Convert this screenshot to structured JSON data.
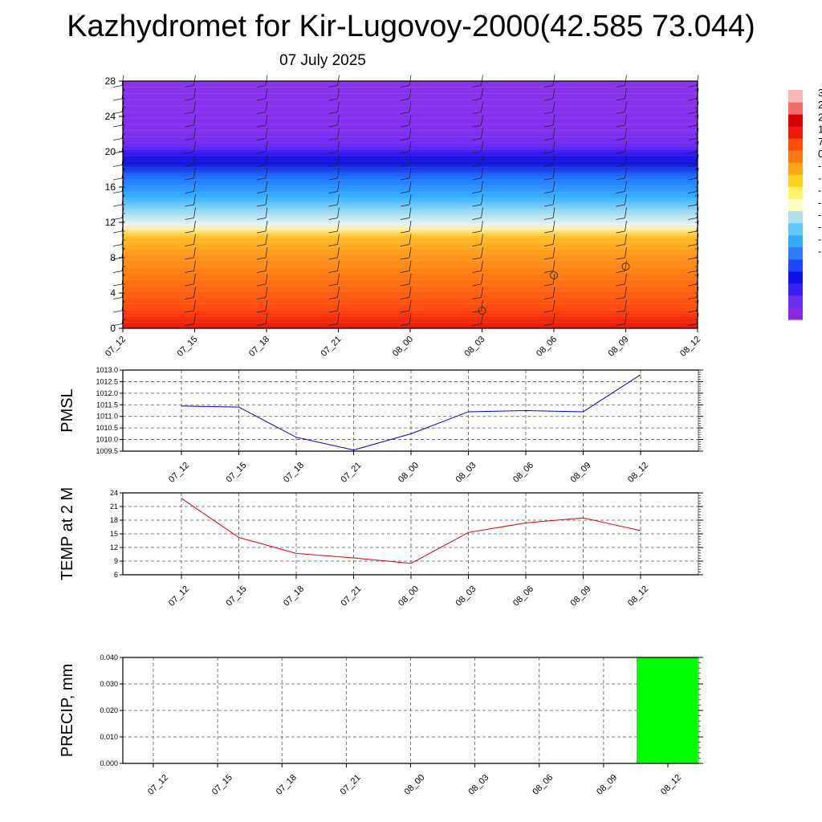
{
  "header": {
    "title": "Kazhydromet for Kir-Lugovoy-2000(42.585 73.044)",
    "subtitle": "07 July 2025"
  },
  "colors": {
    "pmsl_line": "#0000dd",
    "temp_line": "#dd0000",
    "precip_bar": "#00ff00",
    "grid": "#555555",
    "colorbar": [
      "#8a2be2",
      "#6a2ef0",
      "#3a1ff7",
      "#1010e8",
      "#1e48ff",
      "#2d7cff",
      "#34a9ff",
      "#63c8f7",
      "#aee0f0",
      "#fffec0",
      "#fff36e",
      "#ffd024",
      "#ffa51a",
      "#ff7a12",
      "#ff4d0a",
      "#ef1b0a",
      "#d60000",
      "#f56e6e",
      "#f7b8b8"
    ]
  },
  "chart_data": [
    {
      "type": "heatmap",
      "name": "cross-section",
      "x": [
        "07_12",
        "07_15",
        "07_18",
        "07_21",
        "08_00",
        "08_03",
        "08_06",
        "08_09",
        "08_12"
      ],
      "yticks": [
        0,
        4,
        8,
        12,
        16,
        20,
        24,
        28
      ],
      "ylim": [
        0,
        28
      ],
      "colorbar_labels": [
        "3",
        "2",
        "2",
        "1",
        "7",
        "0",
        "-",
        "-",
        "-",
        "-",
        "-",
        "-",
        "-",
        "-"
      ],
      "calm_markers": [
        {
          "x": "08_03",
          "y": 2
        },
        {
          "x": "08_06",
          "y": 6
        },
        {
          "x": "08_09",
          "y": 7
        }
      ]
    },
    {
      "type": "line",
      "ylabel": "PMSL",
      "x": [
        "07_12",
        "07_15",
        "07_18",
        "07_21",
        "08_00",
        "08_03",
        "08_06",
        "08_09",
        "08_12"
      ],
      "values": [
        1011.45,
        1011.4,
        1010.1,
        1009.55,
        1010.25,
        1011.2,
        1011.25,
        1011.2,
        1012.8
      ],
      "ylim": [
        1009.5,
        1013.0
      ],
      "yticks": [
        "1009.5",
        "1010.0",
        "1010.5",
        "1011.0",
        "1011.5",
        "1012.0",
        "1012.5",
        "1013.0"
      ]
    },
    {
      "type": "line",
      "ylabel": "TEMP at 2 M",
      "x": [
        "07_12",
        "07_15",
        "07_18",
        "07_21",
        "08_00",
        "08_03",
        "08_06",
        "08_09",
        "08_12"
      ],
      "values": [
        22.8,
        14.2,
        10.7,
        9.7,
        8.5,
        15.3,
        17.4,
        18.5,
        15.7
      ],
      "ylim": [
        6,
        24
      ],
      "yticks": [
        "6",
        "9",
        "12",
        "15",
        "18",
        "21",
        "24"
      ]
    },
    {
      "type": "bar",
      "ylabel": "PRECIP, mm",
      "x": [
        "07_12",
        "07_15",
        "07_18",
        "07_21",
        "08_00",
        "08_03",
        "08_06",
        "08_09",
        "08_12"
      ],
      "values": [
        0,
        0,
        0,
        0,
        0,
        0,
        0,
        0,
        0.04
      ],
      "ylim": [
        0,
        0.04
      ],
      "yticks": [
        "0.000",
        "0.010",
        "0.020",
        "0.030",
        "0.040"
      ]
    }
  ]
}
